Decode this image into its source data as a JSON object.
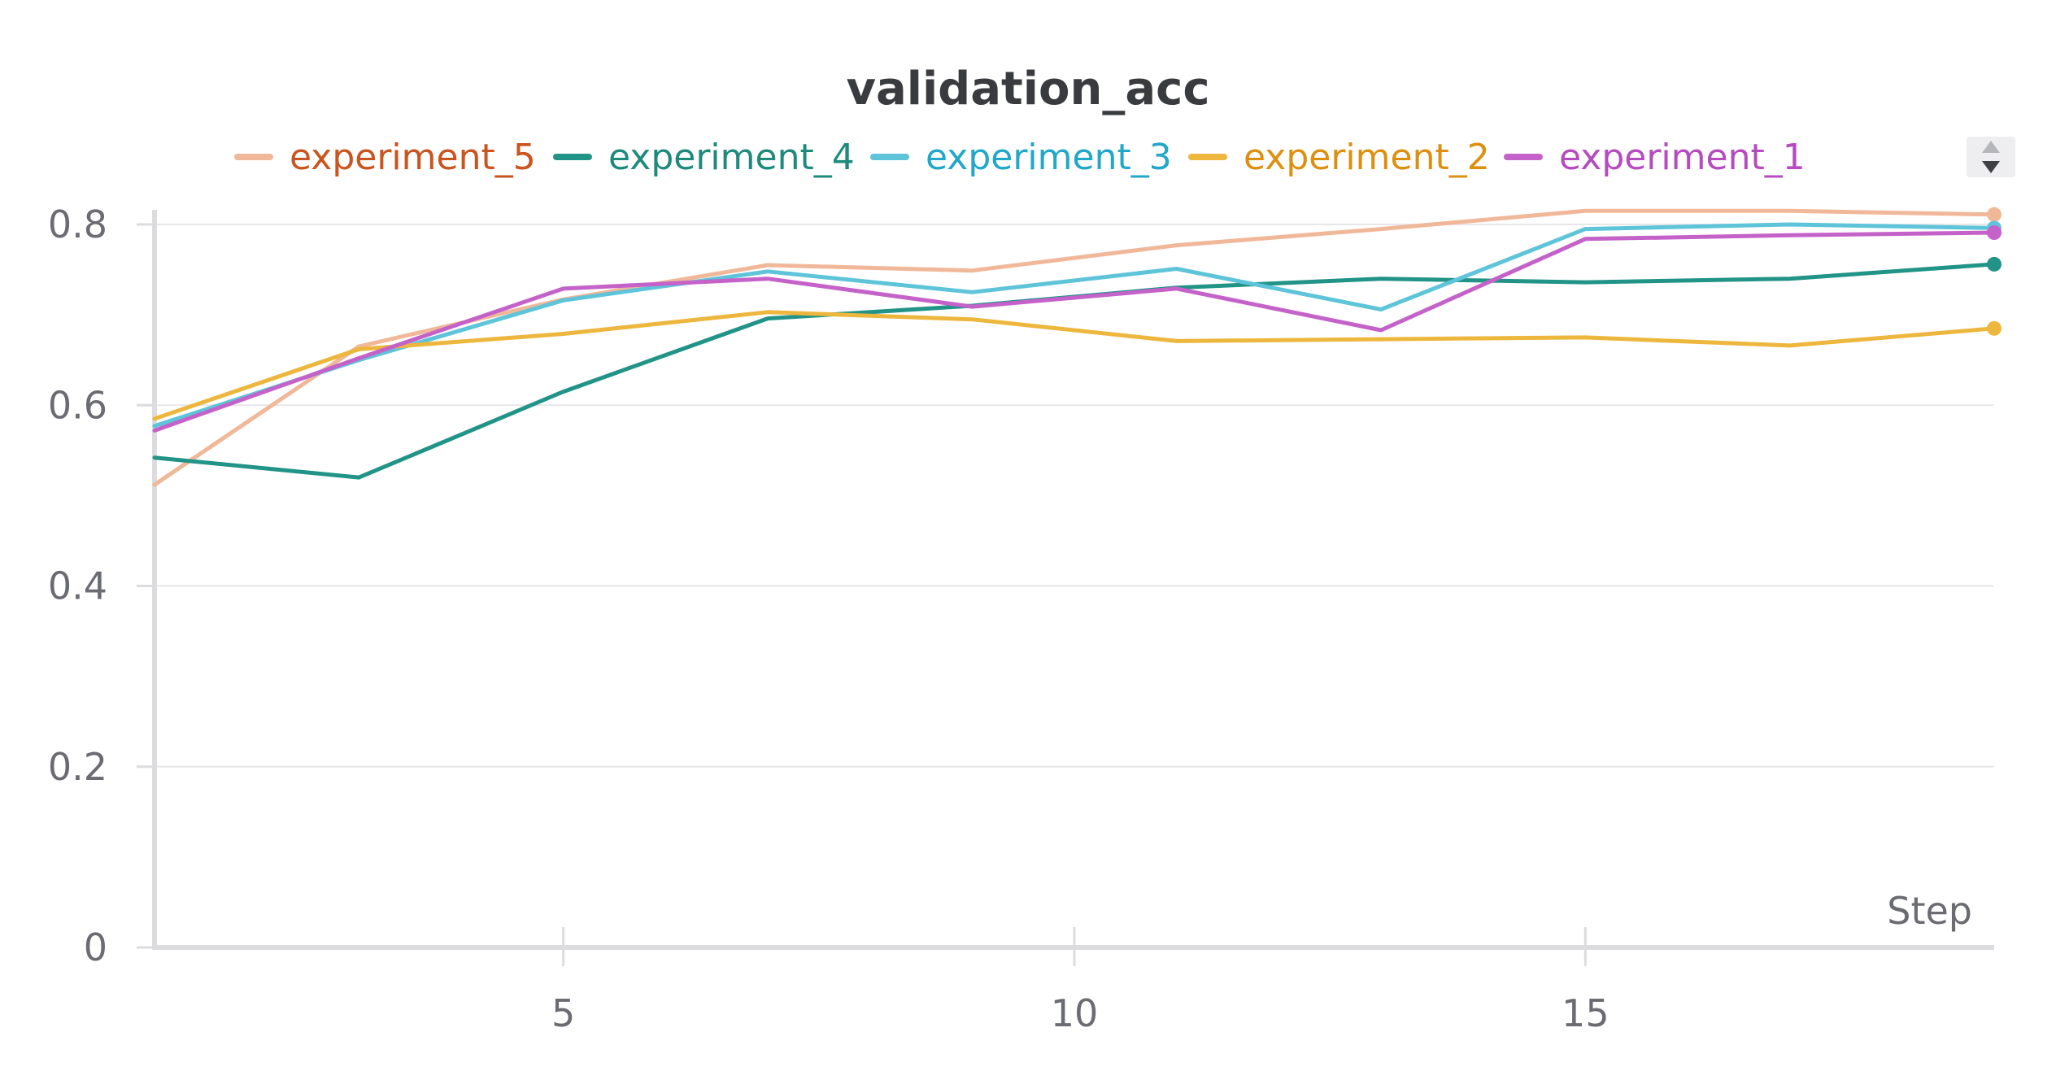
{
  "chart_data": {
    "type": "line",
    "title": "validation_acc",
    "xlabel": "Step",
    "ylabel": "",
    "xlim": [
      1,
      19
    ],
    "ylim": [
      0,
      0.8
    ],
    "x_ticks": [
      5,
      10,
      15
    ],
    "y_ticks": [
      0,
      0.2,
      0.4,
      0.6,
      0.8
    ],
    "y_tick_labels": [
      "0",
      "0.2",
      "0.4",
      "0.6",
      "0.8"
    ],
    "grid": true,
    "legend_position": "top",
    "x": [
      1,
      3,
      5,
      7,
      9,
      11,
      13,
      15,
      17,
      19
    ],
    "series": [
      {
        "name": "experiment_5",
        "color": "#f0b899",
        "text_color": "#c9541e",
        "values": [
          0.512,
          0.665,
          0.717,
          0.755,
          0.749,
          0.777,
          0.795,
          0.815,
          0.815,
          0.811
        ]
      },
      {
        "name": "experiment_4",
        "color": "#229487",
        "text_color": "#1e8a7c",
        "values": [
          0.542,
          0.52,
          0.615,
          0.696,
          0.71,
          0.73,
          0.74,
          0.736,
          0.74,
          0.756
        ]
      },
      {
        "name": "experiment_3",
        "color": "#5ec4d9",
        "text_color": "#22a7c9",
        "values": [
          0.577,
          0.65,
          0.716,
          0.748,
          0.725,
          0.751,
          0.706,
          0.795,
          0.8,
          0.796
        ]
      },
      {
        "name": "experiment_2",
        "color": "#edb63c",
        "text_color": "#dd900f",
        "values": [
          0.585,
          0.662,
          0.679,
          0.703,
          0.695,
          0.671,
          0.673,
          0.675,
          0.666,
          0.685
        ]
      },
      {
        "name": "experiment_1",
        "color": "#c462c9",
        "text_color": "#b64bbf",
        "values": [
          0.572,
          0.652,
          0.729,
          0.74,
          0.709,
          0.729,
          0.683,
          0.784,
          0.788,
          0.791
        ]
      }
    ]
  }
}
